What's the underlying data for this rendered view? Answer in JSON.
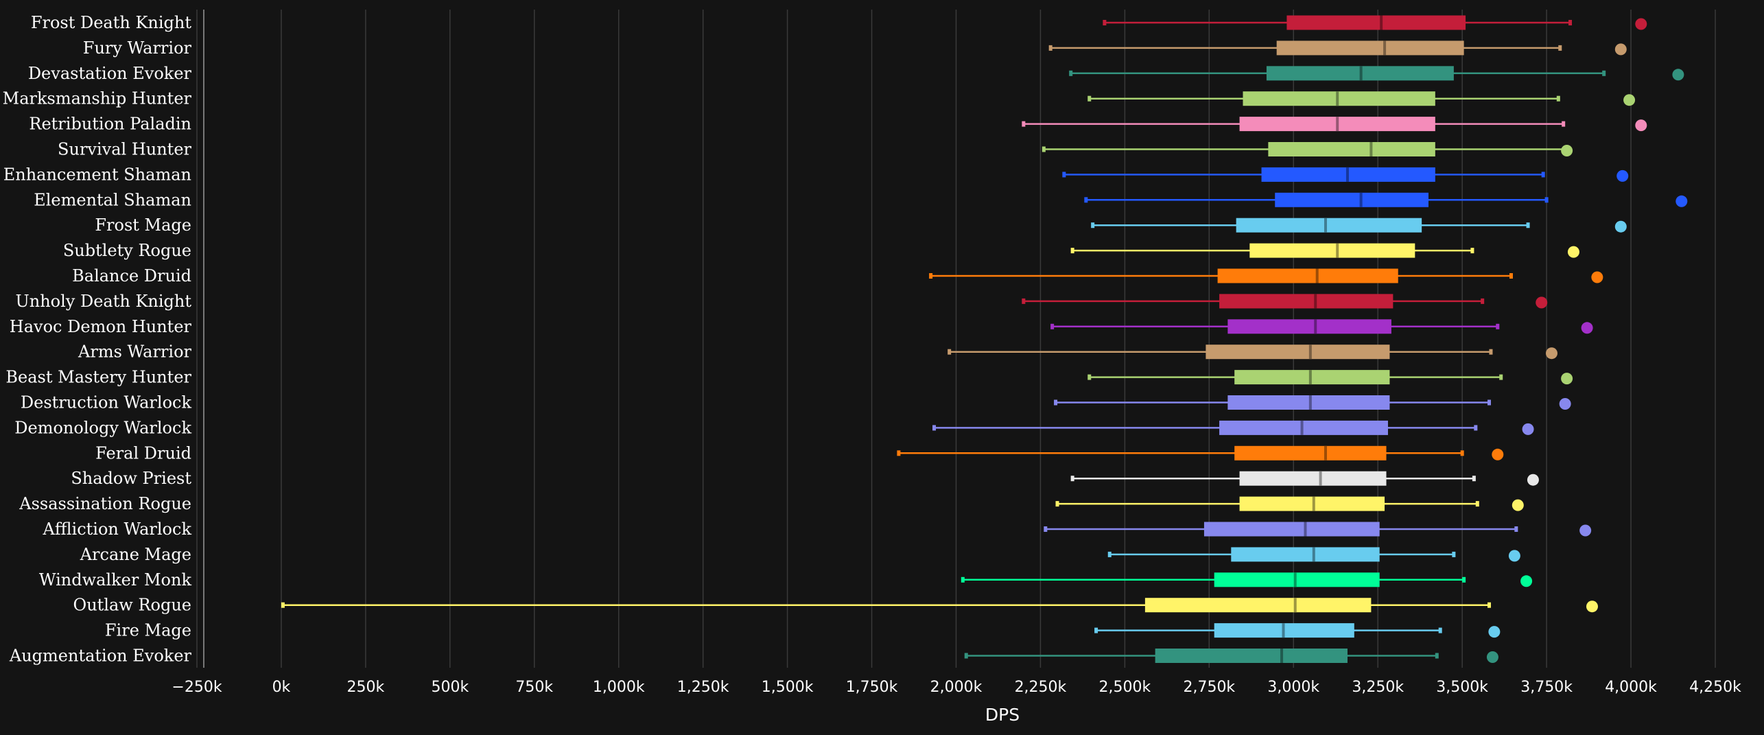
{
  "chart_data": {
    "type": "boxplot",
    "orientation": "horizontal",
    "title": "",
    "xlabel": "DPS",
    "ylabel": "",
    "xlim": [
      -250000,
      4250000
    ],
    "grid": "vertical",
    "xticks": [
      -250000,
      0,
      250000,
      500000,
      750000,
      1000000,
      1250000,
      1500000,
      1750000,
      2000000,
      2250000,
      2500000,
      2750000,
      3000000,
      3250000,
      3500000,
      3750000,
      4000000,
      4250000
    ],
    "xtick_labels": [
      "−250k",
      "0k",
      "250k",
      "500k",
      "750k",
      "1,000k",
      "1,250k",
      "1,500k",
      "1,750k",
      "2,000k",
      "2,250k",
      "2,500k",
      "2,750k",
      "3,000k",
      "3,250k",
      "3,500k",
      "3,750k",
      "4,000k",
      "4,250k"
    ],
    "series": [
      {
        "name": "Frost Death Knight",
        "color": "#c41e3a",
        "min": 2440000,
        "q1": 2980000,
        "median": 3260000,
        "q3": 3510000,
        "max": 3820000,
        "outlier": 4030000
      },
      {
        "name": "Fury Warrior",
        "color": "#c69b6d",
        "min": 2280000,
        "q1": 2950000,
        "median": 3270000,
        "q3": 3505000,
        "max": 3790000,
        "outlier": 3970000
      },
      {
        "name": "Devastation Evoker",
        "color": "#33937f",
        "min": 2340000,
        "q1": 2920000,
        "median": 3200000,
        "q3": 3475000,
        "max": 3920000,
        "outlier": 4140000
      },
      {
        "name": "Marksmanship Hunter",
        "color": "#aad372",
        "min": 2395000,
        "q1": 2850000,
        "median": 3130000,
        "q3": 3420000,
        "max": 3785000,
        "outlier": 3995000
      },
      {
        "name": "Retribution Paladin",
        "color": "#f48cba",
        "min": 2200000,
        "q1": 2840000,
        "median": 3130000,
        "q3": 3420000,
        "max": 3800000,
        "outlier": 4030000
      },
      {
        "name": "Survival Hunter",
        "color": "#aad372",
        "min": 2260000,
        "q1": 2925000,
        "median": 3230000,
        "q3": 3420000,
        "max": 3805000,
        "outlier": 3810000
      },
      {
        "name": "Enhancement Shaman",
        "color": "#2459ff",
        "min": 2320000,
        "q1": 2905000,
        "median": 3160000,
        "q3": 3420000,
        "max": 3740000,
        "outlier": 3975000
      },
      {
        "name": "Elemental Shaman",
        "color": "#2459ff",
        "min": 2385000,
        "q1": 2945000,
        "median": 3200000,
        "q3": 3400000,
        "max": 3750000,
        "outlier": 4150000
      },
      {
        "name": "Frost Mage",
        "color": "#68ccef",
        "min": 2405000,
        "q1": 2830000,
        "median": 3095000,
        "q3": 3380000,
        "max": 3695000,
        "outlier": 3970000
      },
      {
        "name": "Subtlety Rogue",
        "color": "#fff468",
        "min": 2345000,
        "q1": 2870000,
        "median": 3130000,
        "q3": 3360000,
        "max": 3530000,
        "outlier": 3830000
      },
      {
        "name": "Balance Druid",
        "color": "#ff7c0a",
        "min": 1925000,
        "q1": 2775000,
        "median": 3070000,
        "q3": 3310000,
        "max": 3645000,
        "outlier": 3900000
      },
      {
        "name": "Unholy Death Knight",
        "color": "#c41e3a",
        "min": 2200000,
        "q1": 2780000,
        "median": 3065000,
        "q3": 3295000,
        "max": 3560000,
        "outlier": 3735000
      },
      {
        "name": "Havoc Demon Hunter",
        "color": "#a330c9",
        "min": 2285000,
        "q1": 2805000,
        "median": 3065000,
        "q3": 3290000,
        "max": 3605000,
        "outlier": 3870000
      },
      {
        "name": "Arms Warrior",
        "color": "#c69b6d",
        "min": 1980000,
        "q1": 2740000,
        "median": 3050000,
        "q3": 3285000,
        "max": 3585000,
        "outlier": 3765000
      },
      {
        "name": "Beast Mastery Hunter",
        "color": "#aad372",
        "min": 2395000,
        "q1": 2825000,
        "median": 3050000,
        "q3": 3285000,
        "max": 3615000,
        "outlier": 3810000
      },
      {
        "name": "Destruction Warlock",
        "color": "#8788ee",
        "min": 2295000,
        "q1": 2805000,
        "median": 3050000,
        "q3": 3285000,
        "max": 3580000,
        "outlier": 3805000
      },
      {
        "name": "Demonology Warlock",
        "color": "#8788ee",
        "min": 1935000,
        "q1": 2780000,
        "median": 3025000,
        "q3": 3280000,
        "max": 3540000,
        "outlier": 3695000
      },
      {
        "name": "Feral Druid",
        "color": "#ff7c0a",
        "min": 1830000,
        "q1": 2825000,
        "median": 3095000,
        "q3": 3275000,
        "max": 3500000,
        "outlier": 3605000
      },
      {
        "name": "Shadow Priest",
        "color": "#e8e8e8",
        "min": 2345000,
        "q1": 2840000,
        "median": 3080000,
        "q3": 3275000,
        "max": 3535000,
        "outlier": 3710000
      },
      {
        "name": "Assassination Rogue",
        "color": "#fff468",
        "min": 2300000,
        "q1": 2840000,
        "median": 3060000,
        "q3": 3270000,
        "max": 3545000,
        "outlier": 3665000
      },
      {
        "name": "Affliction Warlock",
        "color": "#8788ee",
        "min": 2265000,
        "q1": 2735000,
        "median": 3035000,
        "q3": 3255000,
        "max": 3660000,
        "outlier": 3865000
      },
      {
        "name": "Arcane Mage",
        "color": "#68ccef",
        "min": 2455000,
        "q1": 2815000,
        "median": 3060000,
        "q3": 3255000,
        "max": 3475000,
        "outlier": 3655000
      },
      {
        "name": "Windwalker Monk",
        "color": "#00ff98",
        "min": 2020000,
        "q1": 2765000,
        "median": 3005000,
        "q3": 3255000,
        "max": 3505000,
        "outlier": 3690000
      },
      {
        "name": "Outlaw Rogue",
        "color": "#fff468",
        "min": 5000,
        "q1": 2560000,
        "median": 3005000,
        "q3": 3230000,
        "max": 3580000,
        "outlier": 3885000
      },
      {
        "name": "Fire Mage",
        "color": "#68ccef",
        "min": 2415000,
        "q1": 2765000,
        "median": 2970000,
        "q3": 3180000,
        "max": 3435000,
        "outlier": 3595000
      },
      {
        "name": "Augmentation Evoker",
        "color": "#33937f",
        "min": 2030000,
        "q1": 2590000,
        "median": 2965000,
        "q3": 3160000,
        "max": 3425000,
        "outlier": 3590000
      }
    ]
  }
}
